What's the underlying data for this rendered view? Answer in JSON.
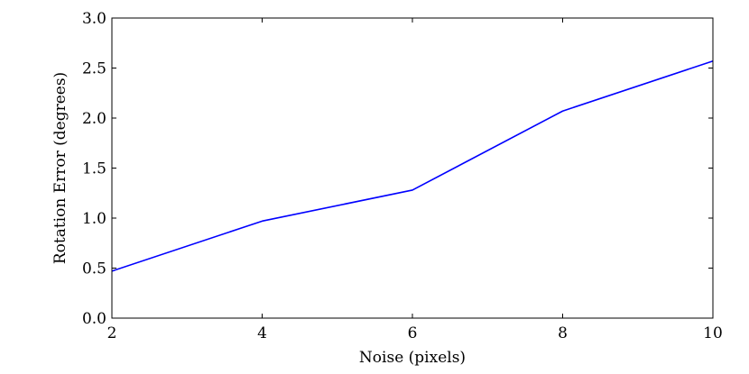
{
  "chart_data": {
    "type": "line",
    "title": "",
    "xlabel": "Noise (pixels)",
    "ylabel": "Rotation Error (degrees)",
    "xlim": [
      2,
      10
    ],
    "ylim": [
      0.0,
      3.0
    ],
    "xticks": [
      2,
      4,
      6,
      8,
      10
    ],
    "xtick_labels": [
      "2",
      "4",
      "6",
      "8",
      "10"
    ],
    "yticks": [
      0.0,
      0.5,
      1.0,
      1.5,
      2.0,
      2.5,
      3.0
    ],
    "ytick_labels": [
      "0.0",
      "0.5",
      "1.0",
      "1.5",
      "2.0",
      "2.5",
      "3.0"
    ],
    "grid": false,
    "series": [
      {
        "x": [
          2,
          4,
          6,
          8,
          10
        ],
        "values": [
          0.47,
          0.97,
          1.28,
          2.07,
          2.57
        ],
        "color": "#0000ff"
      }
    ]
  }
}
